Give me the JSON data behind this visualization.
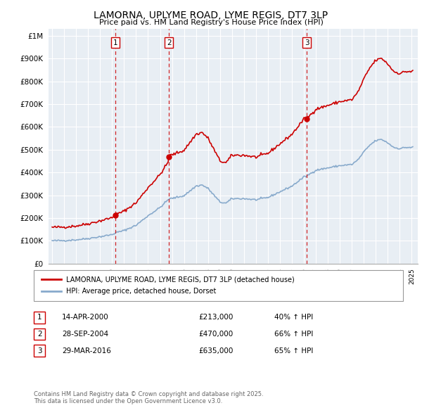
{
  "title": "LAMORNA, UPLYME ROAD, LYME REGIS, DT7 3LP",
  "subtitle": "Price paid vs. HM Land Registry's House Price Index (HPI)",
  "ylabel_ticks": [
    "£0",
    "£100K",
    "£200K",
    "£300K",
    "£400K",
    "£500K",
    "£600K",
    "£700K",
    "£800K",
    "£900K",
    "£1M"
  ],
  "ytick_values": [
    0,
    100000,
    200000,
    300000,
    400000,
    500000,
    600000,
    700000,
    800000,
    900000,
    1000000
  ],
  "ylim": [
    0,
    1030000
  ],
  "sale_dates_float": [
    2000.288,
    2004.747,
    2016.247
  ],
  "sale_prices": [
    213000,
    470000,
    635000
  ],
  "sale_labels": [
    "1",
    "2",
    "3"
  ],
  "legend_line1": "LAMORNA, UPLYME ROAD, LYME REGIS, DT7 3LP (detached house)",
  "legend_line2": "HPI: Average price, detached house, Dorset",
  "table_rows": [
    [
      "1",
      "14-APR-2000",
      "£213,000",
      "40% ↑ HPI"
    ],
    [
      "2",
      "28-SEP-2004",
      "£470,000",
      "66% ↑ HPI"
    ],
    [
      "3",
      "29-MAR-2016",
      "£635,000",
      "65% ↑ HPI"
    ]
  ],
  "footnote": "Contains HM Land Registry data © Crown copyright and database right 2025.\nThis data is licensed under the Open Government Licence v3.0.",
  "red_color": "#cc0000",
  "blue_color": "#88aacc",
  "chart_bg": "#e8eef4",
  "grid_color": "#ffffff"
}
